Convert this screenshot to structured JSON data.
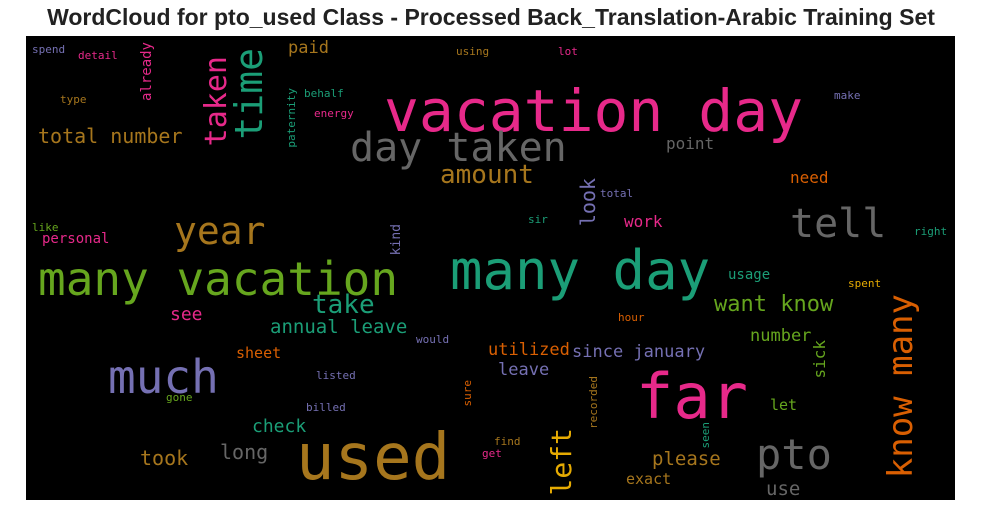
{
  "chart_data": {
    "type": "wordcloud",
    "title": "WordCloud for pto_used Class - Processed Back_Translation-Arabic Training Set",
    "background": "#000000",
    "colormap": [
      "#e7298a",
      "#1b9e77",
      "#d95f02",
      "#7570b3",
      "#66a61e",
      "#e6ab02",
      "#a6761d",
      "#666666"
    ],
    "words": [
      {
        "text": "vacation day",
        "color": "#e7298a"
      },
      {
        "text": "many day",
        "color": "#1b9e77"
      },
      {
        "text": "many vacation",
        "color": "#66a61e"
      },
      {
        "text": "used",
        "color": "#a6761d"
      },
      {
        "text": "far",
        "color": "#e7298a"
      },
      {
        "text": "day taken",
        "color": "#666666"
      },
      {
        "text": "much",
        "color": "#7570b3"
      },
      {
        "text": "time",
        "color": "#1b9e77"
      },
      {
        "text": "tell",
        "color": "#666666"
      },
      {
        "text": "pto",
        "color": "#666666"
      },
      {
        "text": "know many",
        "color": "#d95f02"
      },
      {
        "text": "taken",
        "color": "#e7298a"
      },
      {
        "text": "year",
        "color": "#a6761d"
      },
      {
        "text": "left",
        "color": "#e6ab02"
      },
      {
        "text": "amount",
        "color": "#a6761d"
      },
      {
        "text": "take",
        "color": "#1b9e77"
      },
      {
        "text": "want know",
        "color": "#66a61e"
      },
      {
        "text": "total number",
        "color": "#a6761d"
      },
      {
        "text": "annual leave",
        "color": "#1b9e77"
      },
      {
        "text": "since january",
        "color": "#7570b3"
      },
      {
        "text": "please",
        "color": "#a6761d"
      },
      {
        "text": "took",
        "color": "#a6761d"
      },
      {
        "text": "long",
        "color": "#666666"
      },
      {
        "text": "check",
        "color": "#1b9e77"
      },
      {
        "text": "use",
        "color": "#666666"
      },
      {
        "text": "look",
        "color": "#7570b3"
      },
      {
        "text": "see",
        "color": "#e7298a"
      },
      {
        "text": "need",
        "color": "#d95f02"
      },
      {
        "text": "number",
        "color": "#66a61e"
      },
      {
        "text": "utilized",
        "color": "#d95f02"
      },
      {
        "text": "leave",
        "color": "#7570b3"
      },
      {
        "text": "paid",
        "color": "#a6761d"
      },
      {
        "text": "point",
        "color": "#666666"
      },
      {
        "text": "work",
        "color": "#e7298a"
      },
      {
        "text": "personal",
        "color": "#e7298a"
      },
      {
        "text": "sheet",
        "color": "#d95f02"
      },
      {
        "text": "exact",
        "color": "#a6761d"
      },
      {
        "text": "sick",
        "color": "#66a61e"
      },
      {
        "text": "let",
        "color": "#66a61e"
      },
      {
        "text": "already",
        "color": "#e7298a"
      },
      {
        "text": "usage",
        "color": "#1b9e77"
      },
      {
        "text": "kind",
        "color": "#7570b3"
      },
      {
        "text": "behalf",
        "color": "#1b9e77"
      },
      {
        "text": "energy",
        "color": "#e7298a"
      },
      {
        "text": "paternity",
        "color": "#1b9e77"
      },
      {
        "text": "spend",
        "color": "#7570b3"
      },
      {
        "text": "detail",
        "color": "#e7298a"
      },
      {
        "text": "type",
        "color": "#a6761d"
      },
      {
        "text": "using",
        "color": "#a6761d"
      },
      {
        "text": "lot",
        "color": "#e7298a"
      },
      {
        "text": "make",
        "color": "#7570b3"
      },
      {
        "text": "total",
        "color": "#7570b3"
      },
      {
        "text": "sir",
        "color": "#1b9e77"
      },
      {
        "text": "like",
        "color": "#66a61e"
      },
      {
        "text": "right",
        "color": "#1b9e77"
      },
      {
        "text": "spent",
        "color": "#e6ab02"
      },
      {
        "text": "hour",
        "color": "#d95f02"
      },
      {
        "text": "would",
        "color": "#7570b3"
      },
      {
        "text": "listed",
        "color": "#7570b3"
      },
      {
        "text": "gone",
        "color": "#66a61e"
      },
      {
        "text": "billed",
        "color": "#7570b3"
      },
      {
        "text": "sure",
        "color": "#d95f02"
      },
      {
        "text": "recorded",
        "color": "#a6761d"
      },
      {
        "text": "find",
        "color": "#a6761d"
      },
      {
        "text": "get",
        "color": "#e7298a"
      },
      {
        "text": "seen",
        "color": "#1b9e77"
      }
    ]
  }
}
